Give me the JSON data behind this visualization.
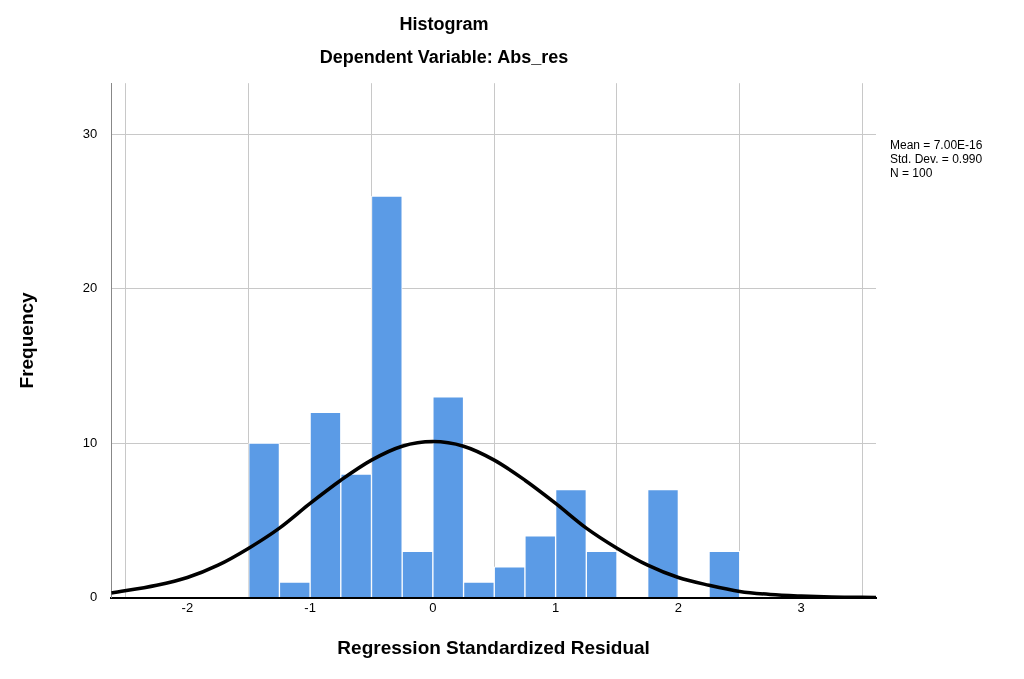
{
  "chart_data": {
    "type": "histogram",
    "title": "Histogram",
    "subtitle": "Dependent Variable: Abs_res",
    "xlabel": "Regression Standardized Residual",
    "ylabel": "Frequency",
    "bins": [
      -1.5,
      -1.25,
      -1,
      -0.75,
      -0.5,
      -0.25,
      0,
      0.25,
      0.5,
      0.75,
      1,
      1.25,
      1.5,
      1.75,
      2,
      2.25,
      2.5
    ],
    "values": [
      10,
      1,
      12,
      8,
      26,
      3,
      13,
      1,
      2,
      4,
      7,
      3,
      0,
      7,
      0,
      3
    ],
    "color": "#5b9be6",
    "series": [
      {
        "type": "line",
        "color": "#000000",
        "x": [
          -2.62,
          -2.25,
          -2,
          -1.75,
          -1.5,
          -1.25,
          -1,
          -0.75,
          -0.5,
          -0.25,
          0,
          0.25,
          0.5,
          0.75,
          1,
          1.25,
          1.5,
          1.75,
          2,
          2.25,
          2.5,
          2.75,
          3,
          3.25,
          3.61
        ],
        "values": [
          0.3,
          0.8,
          1.3,
          2.1,
          3.2,
          4.5,
          6.1,
          7.6,
          8.9,
          9.8,
          10.1,
          9.8,
          8.9,
          7.6,
          6.1,
          4.5,
          3.2,
          2.1,
          1.3,
          0.8,
          0.4,
          0.2,
          0.1,
          0.04,
          0.01
        ]
      }
    ],
    "xlim": [
      -2.62,
      3.61
    ],
    "xticks": [
      -2,
      -1,
      0,
      1,
      2,
      3
    ],
    "ylim": [
      0,
      33.3
    ],
    "yticks": [
      0,
      10,
      20,
      30
    ],
    "grid": true,
    "legend": false,
    "annotations": [
      "Mean = 7.00E-16",
      "Std. Dev. = 0.990",
      "N = 100"
    ]
  }
}
